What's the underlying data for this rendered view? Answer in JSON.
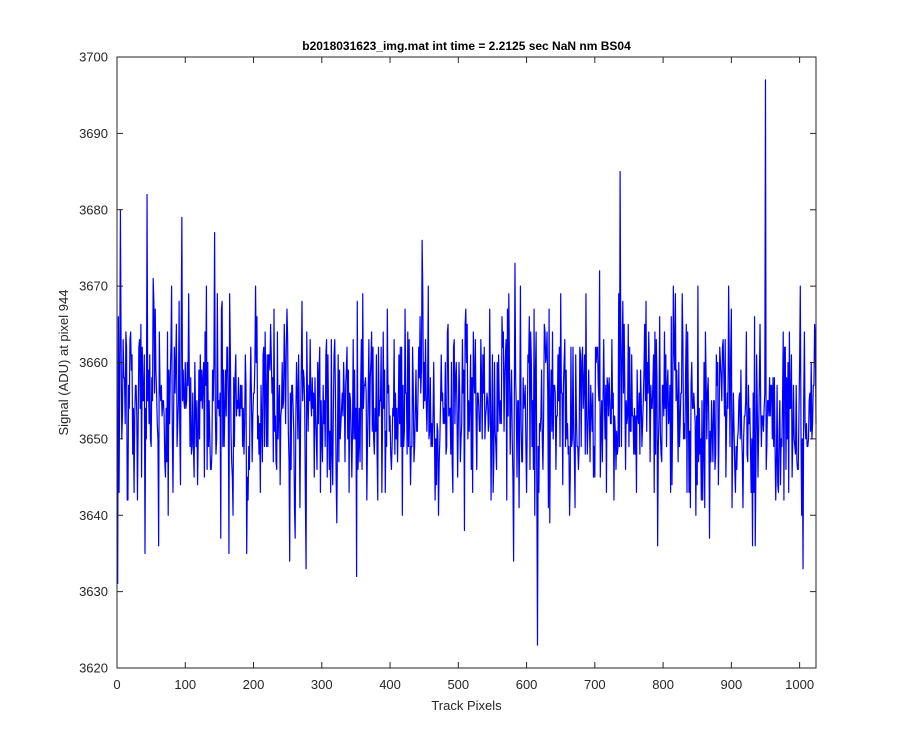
{
  "chart_data": {
    "type": "line",
    "title": "b2018031623_img.mat int time = 2.2125 sec  NaN nm BS04",
    "xlabel": "Track Pixels",
    "ylabel": "Signal (ADU) at pixel 944",
    "xlim": [
      0,
      1024
    ],
    "ylim": [
      3620,
      3700
    ],
    "xticks": [
      0,
      100,
      200,
      300,
      400,
      500,
      600,
      700,
      800,
      900,
      1000
    ],
    "yticks": [
      3620,
      3630,
      3640,
      3650,
      3660,
      3670,
      3680,
      3690,
      3700
    ],
    "grid": false,
    "line_color": "#0000ff",
    "series": [
      {
        "x_start": 1,
        "x_step": 1,
        "n_points": 1024,
        "mean": 3654,
        "key_points": [
          {
            "x": 1,
            "y": 3631
          },
          {
            "x": 5,
            "y": 3680
          },
          {
            "x": 44,
            "y": 3682
          },
          {
            "x": 41,
            "y": 3635
          },
          {
            "x": 95,
            "y": 3679
          },
          {
            "x": 143,
            "y": 3677
          },
          {
            "x": 164,
            "y": 3635
          },
          {
            "x": 277,
            "y": 3633
          },
          {
            "x": 351,
            "y": 3632
          },
          {
            "x": 447,
            "y": 3676
          },
          {
            "x": 581,
            "y": 3634
          },
          {
            "x": 616,
            "y": 3623
          },
          {
            "x": 737,
            "y": 3685
          },
          {
            "x": 931,
            "y": 3636
          },
          {
            "x": 950,
            "y": 3697
          },
          {
            "x": 1005,
            "y": 3633
          },
          {
            "x": 1024,
            "y": 3652
          }
        ]
      }
    ]
  }
}
